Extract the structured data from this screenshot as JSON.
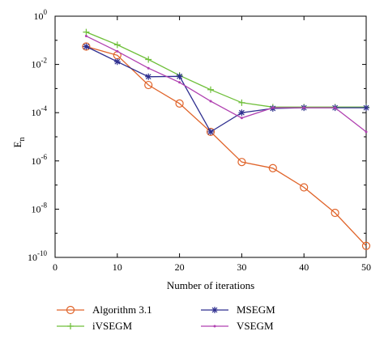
{
  "chart_data": {
    "type": "line",
    "xlabel": "Number of iterations",
    "ylabel": "E",
    "ylabel_sub": "n",
    "xlim": [
      0,
      50
    ],
    "ylim": [
      1e-10,
      1
    ],
    "yscale": "log",
    "grid": false,
    "legend_position": "bottom",
    "x_ticks": [
      "0",
      "10",
      "20",
      "30",
      "40",
      "50"
    ],
    "y_ticks": [
      {
        "base": "10",
        "exp": "0"
      },
      {
        "base": "10",
        "exp": "-2"
      },
      {
        "base": "10",
        "exp": "-4"
      },
      {
        "base": "10",
        "exp": "-6"
      },
      {
        "base": "10",
        "exp": "-8"
      },
      {
        "base": "10",
        "exp": "-10"
      }
    ],
    "x": [
      5,
      10,
      15,
      20,
      25,
      30,
      35,
      40,
      45,
      50
    ],
    "series": [
      {
        "name": "Algorithm 3.1",
        "color": "#e0642a",
        "marker": "circle",
        "values": [
          0.055,
          0.024,
          0.0014,
          0.00024,
          1.6e-05,
          9e-07,
          5e-07,
          8e-08,
          7e-09,
          3e-10
        ]
      },
      {
        "name": "iVSEGM",
        "color": "#6fbf3a",
        "marker": "plus",
        "values": [
          0.22,
          0.065,
          0.016,
          0.0035,
          0.0009,
          0.00026,
          0.00017,
          0.00017,
          0.00017,
          0.00017
        ]
      },
      {
        "name": "MSEGM",
        "color": "#2e2e8f",
        "marker": "star",
        "values": [
          0.055,
          0.013,
          0.0031,
          0.0032,
          1.6e-05,
          0.0001,
          0.00015,
          0.00016,
          0.00016,
          0.00016
        ]
      },
      {
        "name": "VSEGM",
        "color": "#b040b0",
        "marker": "dot",
        "values": [
          0.15,
          0.035,
          0.007,
          0.0018,
          0.0003,
          6e-05,
          0.00016,
          0.00016,
          0.00016,
          1.6e-05
        ]
      }
    ]
  }
}
